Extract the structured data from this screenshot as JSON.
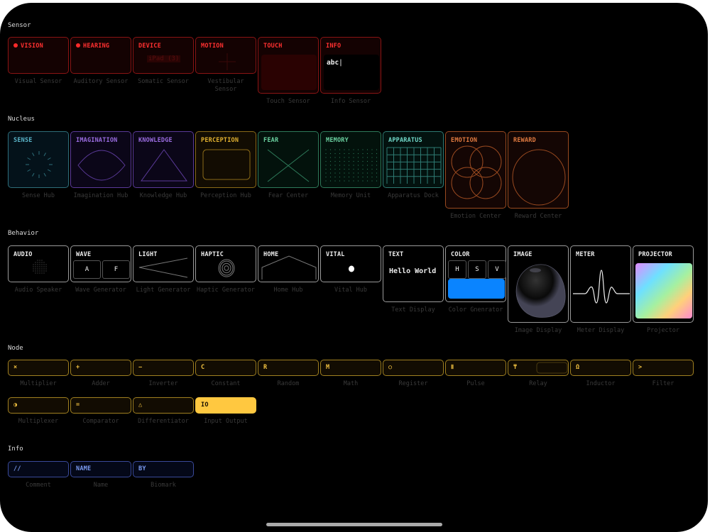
{
  "colors": {
    "sensor": "#ff3030",
    "nucleus_sense": "#5ab4c8",
    "nucleus_purple": "#9a6ce0",
    "nucleus_yellow": "#e0b030",
    "nucleus_green": "#6ad0a0",
    "nucleus_teal": "#70d8c8",
    "nucleus_orange": "#e07a40",
    "node": "#f0c040",
    "info": "#7a9af0",
    "color_swatch": "#0a84ff"
  },
  "sections": [
    {
      "title": "Sensor",
      "cards": [
        {
          "title": "VISION",
          "label": "Visual Sensor",
          "icon": "status-dot-icon"
        },
        {
          "title": "HEARING",
          "label": "Auditory Sensor",
          "icon": "status-dot-icon"
        },
        {
          "title": "DEVICE",
          "label": "Somatic Sensor",
          "value": "iPad (3)"
        },
        {
          "title": "MOTION",
          "label": "Vestibular Sensor",
          "icon": "crosshair-icon"
        },
        {
          "title": "TOUCH",
          "label": "Touch Sensor",
          "icon": "touch-pad"
        },
        {
          "title": "INFO",
          "label": "Info Sensor",
          "value": "abc"
        }
      ]
    },
    {
      "title": "Nucleus",
      "cards": [
        {
          "title": "SENSE",
          "label": "Sense Hub",
          "icon": "radial-ticks-icon"
        },
        {
          "title": "IMAGINATION",
          "label": "Imagination Hub",
          "icon": "eye-icon"
        },
        {
          "title": "KNOWLEDGE",
          "label": "Knowledge Hub",
          "icon": "triangle-icon"
        },
        {
          "title": "PERCEPTION",
          "label": "Perception Hub",
          "icon": "rounded-rect-icon"
        },
        {
          "title": "FEAR",
          "label": "Fear Center",
          "icon": "cross-icon"
        },
        {
          "title": "MEMORY",
          "label": "Memory Unit",
          "icon": "dot-grid-icon"
        },
        {
          "title": "APPARATUS",
          "label": "Apparatus Dock",
          "icon": "grid-icon"
        },
        {
          "title": "EMOTION",
          "label": "Emotion Center",
          "icon": "four-circles-icon"
        },
        {
          "title": "REWARD",
          "label": "Reward Center",
          "icon": "circle-icon"
        }
      ]
    },
    {
      "title": "Behavior",
      "cards": [
        {
          "title": "AUDIO",
          "label": "Audio Speaker",
          "icon": "speaker-grille-icon"
        },
        {
          "title": "WAVE",
          "label": "Wave Generator",
          "buttons": [
            "A",
            "F"
          ]
        },
        {
          "title": "LIGHT",
          "label": "Light Generator",
          "icon": "light-beam-icon"
        },
        {
          "title": "HAPTIC",
          "label": "Haptic Generator",
          "icon": "concentric-circles-icon"
        },
        {
          "title": "HOME",
          "label": "Home Hub",
          "icon": "house-icon"
        },
        {
          "title": "VITAL",
          "label": "Vital Hub",
          "icon": "pulse-dot-icon"
        },
        {
          "title": "TEXT",
          "label": "Text Display",
          "value": "Hello World"
        },
        {
          "title": "COLOR",
          "label": "Color Gnenrator",
          "buttons": [
            "H",
            "S",
            "V"
          ]
        },
        {
          "title": "IMAGE",
          "label": "Image Display",
          "icon": "bubble-image"
        },
        {
          "title": "METER",
          "label": "Meter Display",
          "icon": "waveform-icon"
        },
        {
          "title": "PROJECTOR",
          "label": "Projector",
          "icon": "gradient-screen"
        }
      ]
    },
    {
      "title": "Node",
      "cards": [
        {
          "title": "×",
          "label": "Multiplier"
        },
        {
          "title": "+",
          "label": "Adder"
        },
        {
          "title": "−",
          "label": "Inverter"
        },
        {
          "title": "C",
          "label": "Constant"
        },
        {
          "title": "R",
          "label": "Random"
        },
        {
          "title": "M",
          "label": "Math"
        },
        {
          "title": "○",
          "label": "Register"
        },
        {
          "title": "Ⅱ",
          "label": "Pulse"
        },
        {
          "title": "₸",
          "label": "Relay"
        },
        {
          "title": "Ω",
          "label": "Inductor"
        },
        {
          "title": ">",
          "label": "Filter"
        },
        {
          "title": "◑",
          "label": "Multiplexer"
        },
        {
          "title": "=",
          "label": "Comparator"
        },
        {
          "title": "△",
          "label": "Differentiator"
        },
        {
          "title": "IO",
          "label": "Input Output",
          "selected": true
        }
      ]
    },
    {
      "title": "Info",
      "cards": [
        {
          "title": "//",
          "label": "Comment"
        },
        {
          "title": "NAME",
          "label": "Name"
        },
        {
          "title": "BY",
          "label": "Biomark"
        }
      ]
    }
  ]
}
